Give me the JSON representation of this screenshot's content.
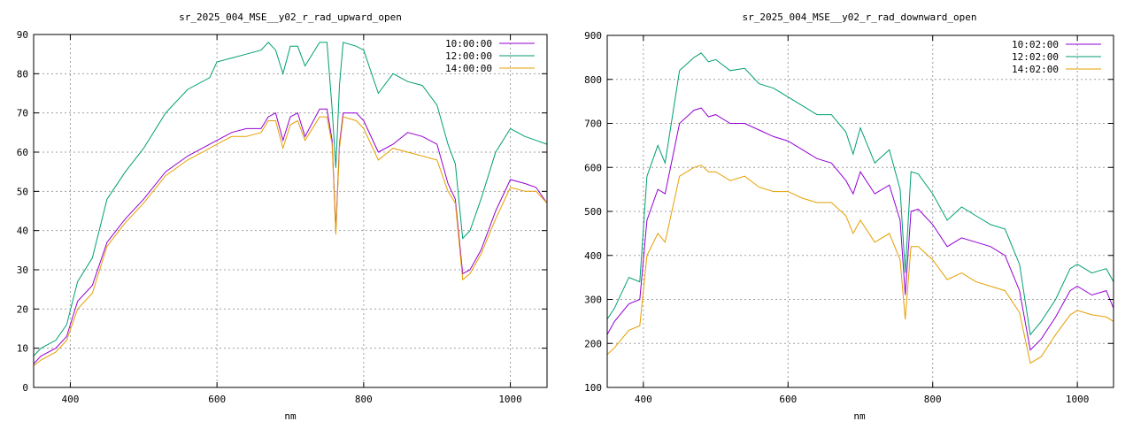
{
  "colors": {
    "series_a": "#9400d3",
    "series_b": "#009e73",
    "series_c": "#e69f00",
    "grid": "#a0a0a0",
    "axis": "#000000",
    "background": "#ffffff"
  },
  "chart_data": [
    {
      "type": "line",
      "title": "sr_2025_004_MSE__y02_r_rad_upward_open",
      "xlabel": "nm",
      "ylabel": "",
      "xlim": [
        350,
        1050
      ],
      "ylim": [
        0,
        90
      ],
      "xticks": [
        400,
        600,
        800,
        1000
      ],
      "yticks": [
        0,
        10,
        20,
        30,
        40,
        50,
        60,
        70,
        80,
        90
      ],
      "grid": true,
      "legend_position": "top-right",
      "series": [
        {
          "name": "10:00:00",
          "color": "#9400d3",
          "x": [
            350,
            360,
            380,
            395,
            410,
            430,
            450,
            475,
            500,
            530,
            560,
            590,
            600,
            620,
            640,
            660,
            670,
            680,
            690,
            700,
            710,
            720,
            740,
            750,
            757,
            762,
            767,
            772,
            790,
            800,
            820,
            840,
            860,
            880,
            900,
            915,
            925,
            935,
            945,
            960,
            980,
            1000,
            1020,
            1035,
            1050
          ],
          "y": [
            6,
            8,
            10,
            13,
            22,
            26,
            37,
            43,
            48,
            55,
            59,
            62,
            63,
            65,
            66,
            66,
            69,
            70,
            63,
            69,
            70,
            64,
            71,
            71,
            63,
            40,
            62,
            70,
            70,
            68,
            60,
            62,
            65,
            64,
            62,
            52,
            48,
            29,
            30,
            35,
            45,
            53,
            52,
            51,
            47
          ]
        },
        {
          "name": "12:00:00",
          "color": "#009e73",
          "x": [
            350,
            360,
            380,
            395,
            410,
            430,
            450,
            475,
            500,
            530,
            560,
            590,
            600,
            620,
            640,
            660,
            670,
            680,
            690,
            700,
            710,
            720,
            740,
            750,
            757,
            762,
            767,
            772,
            790,
            800,
            820,
            840,
            860,
            880,
            900,
            915,
            925,
            935,
            945,
            960,
            980,
            1000,
            1020,
            1035,
            1050
          ],
          "y": [
            8,
            10,
            12,
            16,
            27,
            33,
            48,
            55,
            61,
            70,
            76,
            79,
            83,
            84,
            85,
            86,
            88,
            86,
            80,
            87,
            87,
            82,
            88,
            88,
            71,
            56,
            77,
            88,
            87,
            86,
            75,
            80,
            78,
            77,
            72,
            62,
            57,
            38,
            40,
            48,
            60,
            66,
            64,
            63,
            62
          ]
        },
        {
          "name": "14:00:00",
          "color": "#e69f00",
          "x": [
            350,
            360,
            380,
            395,
            410,
            430,
            450,
            475,
            500,
            530,
            560,
            590,
            600,
            620,
            640,
            660,
            670,
            680,
            690,
            700,
            710,
            720,
            740,
            750,
            757,
            762,
            767,
            772,
            790,
            800,
            820,
            840,
            860,
            880,
            900,
            915,
            925,
            935,
            945,
            960,
            980,
            1000,
            1020,
            1035,
            1050
          ],
          "y": [
            5.5,
            7,
            9,
            12,
            20,
            24,
            36,
            42,
            47,
            54,
            58,
            61,
            62,
            64,
            64,
            65,
            68,
            68,
            61,
            67,
            68,
            63,
            69,
            69,
            62,
            39,
            61,
            69,
            68,
            66,
            58,
            61,
            60,
            59,
            58,
            50,
            47,
            27.5,
            29,
            34,
            43,
            51,
            50,
            50,
            47
          ]
        }
      ]
    },
    {
      "type": "line",
      "title": "sr_2025_004_MSE__y02_r_rad_downward_open",
      "xlabel": "nm",
      "ylabel": "",
      "xlim": [
        350,
        1050
      ],
      "ylim": [
        100,
        900
      ],
      "xticks": [
        400,
        600,
        800,
        1000
      ],
      "yticks": [
        100,
        200,
        300,
        400,
        500,
        600,
        700,
        800,
        900
      ],
      "grid": true,
      "legend_position": "top-right",
      "series": [
        {
          "name": "10:02:00",
          "color": "#9400d3",
          "x": [
            350,
            360,
            380,
            395,
            405,
            420,
            430,
            450,
            470,
            480,
            490,
            500,
            520,
            540,
            560,
            580,
            600,
            620,
            640,
            660,
            680,
            690,
            700,
            720,
            740,
            755,
            762,
            770,
            780,
            800,
            820,
            840,
            860,
            880,
            900,
            920,
            935,
            950,
            970,
            990,
            1000,
            1020,
            1040,
            1050
          ],
          "y": [
            220,
            250,
            290,
            300,
            480,
            550,
            540,
            700,
            730,
            735,
            715,
            720,
            700,
            700,
            685,
            670,
            660,
            640,
            620,
            610,
            570,
            540,
            590,
            540,
            560,
            480,
            310,
            500,
            505,
            470,
            420,
            440,
            430,
            420,
            400,
            320,
            185,
            210,
            260,
            320,
            330,
            310,
            320,
            280
          ]
        },
        {
          "name": "12:02:00",
          "color": "#009e73",
          "x": [
            350,
            360,
            380,
            395,
            405,
            420,
            430,
            450,
            470,
            480,
            490,
            500,
            520,
            540,
            560,
            580,
            600,
            620,
            640,
            660,
            680,
            690,
            700,
            720,
            740,
            755,
            762,
            770,
            780,
            800,
            820,
            840,
            860,
            880,
            900,
            920,
            935,
            950,
            970,
            990,
            1000,
            1020,
            1040,
            1050
          ],
          "y": [
            255,
            280,
            350,
            340,
            580,
            650,
            610,
            820,
            850,
            860,
            840,
            845,
            820,
            825,
            790,
            780,
            760,
            740,
            720,
            720,
            680,
            630,
            690,
            610,
            640,
            550,
            360,
            590,
            585,
            540,
            480,
            510,
            490,
            470,
            460,
            380,
            220,
            250,
            300,
            370,
            380,
            360,
            370,
            340
          ]
        },
        {
          "name": "14:02:00",
          "color": "#e69f00",
          "x": [
            350,
            360,
            380,
            395,
            405,
            420,
            430,
            450,
            470,
            480,
            490,
            500,
            520,
            540,
            560,
            580,
            600,
            620,
            640,
            660,
            680,
            690,
            700,
            720,
            740,
            755,
            762,
            770,
            780,
            800,
            820,
            840,
            860,
            880,
            900,
            920,
            935,
            950,
            970,
            990,
            1000,
            1020,
            1040,
            1050
          ],
          "y": [
            175,
            190,
            230,
            240,
            400,
            450,
            430,
            580,
            600,
            605,
            590,
            590,
            570,
            580,
            555,
            545,
            545,
            530,
            520,
            520,
            490,
            450,
            480,
            430,
            450,
            390,
            255,
            420,
            420,
            390,
            345,
            360,
            340,
            330,
            320,
            270,
            155,
            170,
            220,
            265,
            275,
            265,
            260,
            250
          ]
        }
      ]
    }
  ]
}
